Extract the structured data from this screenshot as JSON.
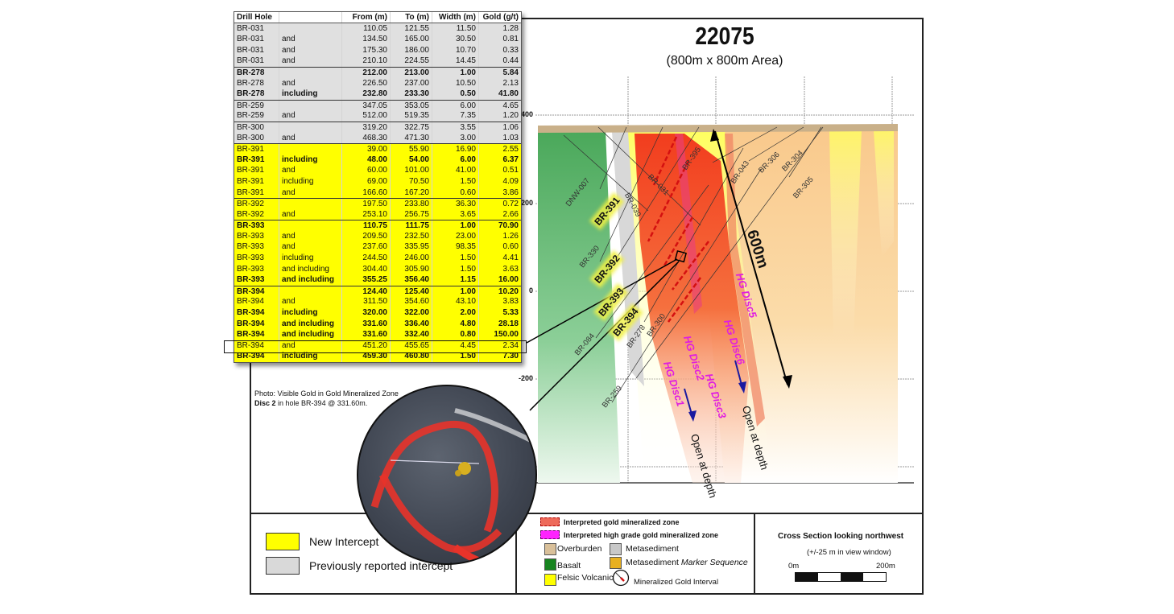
{
  "title": "22075",
  "subtitle": "(800m x 800m Area)",
  "table": {
    "headers": [
      "Drill Hole",
      "",
      "From (m)",
      "To (m)",
      "Width (m)",
      "Gold (g/t)"
    ],
    "rows": [
      {
        "hole": "BR-031",
        "qualifier": "",
        "from": "110.05",
        "to": "121.55",
        "width": "11.50",
        "gold": "1.28",
        "type": "previous",
        "bold": false
      },
      {
        "hole": "BR-031",
        "qualifier": "and",
        "from": "134.50",
        "to": "165.00",
        "width": "30.50",
        "gold": "0.81",
        "type": "previous",
        "bold": false
      },
      {
        "hole": "BR-031",
        "qualifier": "and",
        "from": "175.30",
        "to": "186.00",
        "width": "10.70",
        "gold": "0.33",
        "type": "previous",
        "bold": false
      },
      {
        "hole": "BR-031",
        "qualifier": "and",
        "from": "210.10",
        "to": "224.55",
        "width": "14.45",
        "gold": "0.44",
        "type": "previous",
        "bold": false
      },
      {
        "hole": "BR-278",
        "qualifier": "",
        "from": "212.00",
        "to": "213.00",
        "width": "1.00",
        "gold": "5.84",
        "type": "previous",
        "bold": true
      },
      {
        "hole": "BR-278",
        "qualifier": "and",
        "from": "226.50",
        "to": "237.00",
        "width": "10.50",
        "gold": "2.13",
        "type": "previous",
        "bold": false
      },
      {
        "hole": "BR-278",
        "qualifier": "including",
        "from": "232.80",
        "to": "233.30",
        "width": "0.50",
        "gold": "41.80",
        "type": "previous",
        "bold": true
      },
      {
        "hole": "BR-259",
        "qualifier": "",
        "from": "347.05",
        "to": "353.05",
        "width": "6.00",
        "gold": "4.65",
        "type": "previous",
        "bold": false
      },
      {
        "hole": "BR-259",
        "qualifier": "and",
        "from": "512.00",
        "to": "519.35",
        "width": "7.35",
        "gold": "1.20",
        "type": "previous",
        "bold": false
      },
      {
        "hole": "BR-300",
        "qualifier": "",
        "from": "319.20",
        "to": "322.75",
        "width": "3.55",
        "gold": "1.06",
        "type": "previous",
        "bold": false
      },
      {
        "hole": "BR-300",
        "qualifier": "and",
        "from": "468.30",
        "to": "471.30",
        "width": "3.00",
        "gold": "1.03",
        "type": "previous",
        "bold": false
      },
      {
        "hole": "BR-391",
        "qualifier": "",
        "from": "39.00",
        "to": "55.90",
        "width": "16.90",
        "gold": "2.55",
        "type": "new",
        "bold": false
      },
      {
        "hole": "BR-391",
        "qualifier": "including",
        "from": "48.00",
        "to": "54.00",
        "width": "6.00",
        "gold": "6.37",
        "type": "new",
        "bold": true
      },
      {
        "hole": "BR-391",
        "qualifier": "and",
        "from": "60.00",
        "to": "101.00",
        "width": "41.00",
        "gold": "0.51",
        "type": "new",
        "bold": false
      },
      {
        "hole": "BR-391",
        "qualifier": "including",
        "from": "69.00",
        "to": "70.50",
        "width": "1.50",
        "gold": "4.09",
        "type": "new",
        "bold": false
      },
      {
        "hole": "BR-391",
        "qualifier": "and",
        "from": "166.60",
        "to": "167.20",
        "width": "0.60",
        "gold": "3.86",
        "type": "new",
        "bold": false
      },
      {
        "hole": "BR-392",
        "qualifier": "",
        "from": "197.50",
        "to": "233.80",
        "width": "36.30",
        "gold": "0.72",
        "type": "new",
        "bold": false
      },
      {
        "hole": "BR-392",
        "qualifier": "and",
        "from": "253.10",
        "to": "256.75",
        "width": "3.65",
        "gold": "2.66",
        "type": "new",
        "bold": false
      },
      {
        "hole": "BR-393",
        "qualifier": "",
        "from": "110.75",
        "to": "111.75",
        "width": "1.00",
        "gold": "70.90",
        "type": "new",
        "bold": true
      },
      {
        "hole": "BR-393",
        "qualifier": "and",
        "from": "209.50",
        "to": "232.50",
        "width": "23.00",
        "gold": "1.26",
        "type": "new",
        "bold": false
      },
      {
        "hole": "BR-393",
        "qualifier": "and",
        "from": "237.60",
        "to": "335.95",
        "width": "98.35",
        "gold": "0.60",
        "type": "new",
        "bold": false
      },
      {
        "hole": "BR-393",
        "qualifier": "including",
        "from": "244.50",
        "to": "246.00",
        "width": "1.50",
        "gold": "4.41",
        "type": "new",
        "bold": false
      },
      {
        "hole": "BR-393",
        "qualifier": "and including",
        "from": "304.40",
        "to": "305.90",
        "width": "1.50",
        "gold": "3.63",
        "type": "new",
        "bold": false
      },
      {
        "hole": "BR-393",
        "qualifier": "and including",
        "from": "355.25",
        "to": "356.40",
        "width": "1.15",
        "gold": "16.00",
        "type": "new",
        "bold": true
      },
      {
        "hole": "BR-394",
        "qualifier": "",
        "from": "124.40",
        "to": "125.40",
        "width": "1.00",
        "gold": "10.20",
        "type": "new",
        "bold": true
      },
      {
        "hole": "BR-394",
        "qualifier": "and",
        "from": "311.50",
        "to": "354.60",
        "width": "43.10",
        "gold": "3.83",
        "type": "new",
        "bold": false
      },
      {
        "hole": "BR-394",
        "qualifier": "including",
        "from": "320.00",
        "to": "322.00",
        "width": "2.00",
        "gold": "5.33",
        "type": "new",
        "bold": true
      },
      {
        "hole": "BR-394",
        "qualifier": "and including",
        "from": "331.60",
        "to": "336.40",
        "width": "4.80",
        "gold": "28.18",
        "type": "new",
        "bold": true
      },
      {
        "hole": "BR-394",
        "qualifier": "and including",
        "from": "331.60",
        "to": "332.40",
        "width": "0.80",
        "gold": "150.00",
        "type": "new",
        "bold": true,
        "highlighted": true
      },
      {
        "hole": "BR-394",
        "qualifier": "and",
        "from": "451.20",
        "to": "455.65",
        "width": "4.45",
        "gold": "2.34",
        "type": "new",
        "bold": false
      },
      {
        "hole": "BR-394",
        "qualifier": "including",
        "from": "459.30",
        "to": "460.80",
        "width": "1.50",
        "gold": "7.30",
        "type": "new",
        "bold": true
      }
    ]
  },
  "photo_caption": {
    "line1": "Photo: Visible Gold in Gold Mineralized Zone",
    "line2_bold": "Disc 2",
    "line2": " in hole BR-394 @  331.60m."
  },
  "section": {
    "y_ticks": [
      "400",
      "200",
      "0",
      "-200"
    ],
    "drill_holes_previous": [
      "DNW-007",
      "BR-330",
      "BR-039",
      "BR-031",
      "BR-395",
      "BR-043",
      "BR-306",
      "BR-304",
      "BR-305",
      "BR-084",
      "BR-278",
      "BR-300",
      "BR-259"
    ],
    "drill_holes_new": [
      "BR-391",
      "BR-392",
      "BR-393",
      "BR-394"
    ],
    "hg_discs": [
      "HG Disc1",
      "HG Disc2",
      "HG Disc3",
      "HG Disc5",
      "HG Disc6"
    ],
    "open_at_depth": "Open at depth",
    "length_label": "600m"
  },
  "intercept_legend": {
    "new": "New Intercept",
    "previous": "Previously reported  intercept",
    "new_color": "#ffff00",
    "previous_color": "#d9d9d9"
  },
  "geology_legend": {
    "gold_zone": "Interpreted gold mineralized zone",
    "hg_zone": "Interpreted high grade gold mineralized zone",
    "overburden": "Overburden",
    "metasediment": "Metasediment",
    "basalt": "Basalt",
    "marker_prefix": "Metasediment ",
    "marker_italic": "Marker Sequence",
    "felsic": "Felsic Volcanic",
    "interval": "Mineralized Gold Interval",
    "colors": {
      "gold_zone": "#ee6a5a",
      "hg_zone": "#ff22ff",
      "overburden": "#d9c09a",
      "metasediment": "#c8c8c8",
      "basalt": "#17841f",
      "marker": "#e8b020",
      "felsic": "#ffff00"
    }
  },
  "scale": {
    "title": "Cross Section looking northwest",
    "note": "(+/-25 m in view window)",
    "start": "0m",
    "end": "200m"
  }
}
